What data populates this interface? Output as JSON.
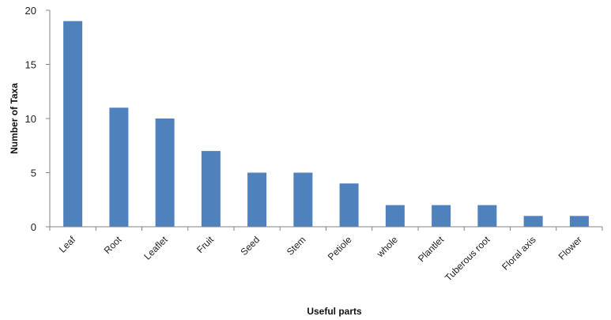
{
  "chart_data": {
    "type": "bar",
    "title": "",
    "xlabel": "Useful parts",
    "ylabel": "Number of Taxa",
    "ylim": [
      0,
      20
    ],
    "yticks": [
      0,
      5,
      10,
      15,
      20
    ],
    "grid": false,
    "legend": "none",
    "bar_color": "#4f81bd",
    "categories": [
      "Leaf",
      "Root",
      "Leaflet",
      "Fruit",
      "Seed",
      "Stem",
      "Petiole",
      "whole",
      "Plantlet",
      "Tuberous root",
      "Floral axis",
      "Flower"
    ],
    "values": [
      19,
      11,
      10,
      7,
      5,
      5,
      4,
      2,
      2,
      2,
      1,
      1
    ]
  }
}
